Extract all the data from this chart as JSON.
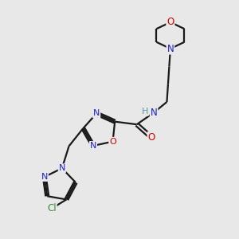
{
  "bg_color": "#e8e8e8",
  "bond_color": "#1a1a1a",
  "N_color": "#2020cc",
  "O_color": "#cc0000",
  "Cl_color": "#3a8a3a",
  "H_color": "#5a9a9a",
  "font_size": 8.5,
  "bond_width": 1.6,
  "fig_w": 3.0,
  "fig_h": 3.0,
  "dpi": 100,
  "xlim": [
    0,
    10
  ],
  "ylim": [
    0,
    10
  ]
}
